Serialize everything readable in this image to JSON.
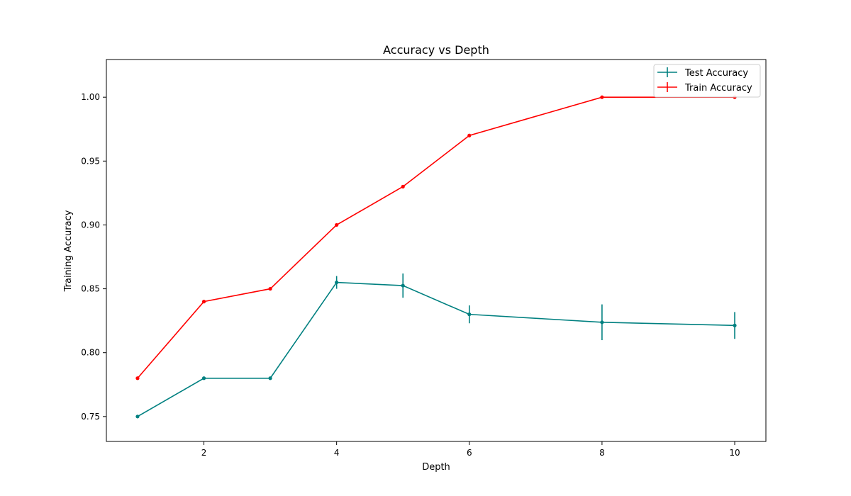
{
  "chart_data": {
    "type": "line",
    "title": "Accuracy vs Depth",
    "xlabel": "Depth",
    "ylabel": "Training Accuracy",
    "xlim": [
      0.53,
      10.47
    ],
    "ylim": [
      0.7305,
      1.0295
    ],
    "x_ticks": [
      2,
      4,
      6,
      8,
      10
    ],
    "y_ticks": [
      0.75,
      0.8,
      0.85,
      0.9,
      0.95,
      1.0
    ],
    "x_tick_labels": [
      "2",
      "4",
      "6",
      "8",
      "10"
    ],
    "y_tick_labels": [
      "0.75",
      "0.80",
      "0.85",
      "0.90",
      "0.95",
      "1.00"
    ],
    "grid": false,
    "legend_position": "top-right",
    "series": [
      {
        "name": "Test Accuracy",
        "color": "#008080",
        "x": [
          1,
          2,
          3,
          4,
          5,
          6,
          8,
          10
        ],
        "y": [
          0.75,
          0.78,
          0.78,
          0.855,
          0.8525,
          0.83,
          0.8238,
          0.8213
        ],
        "yerr": [
          0,
          0,
          0,
          0.005,
          0.0095,
          0.007,
          0.014,
          0.0105
        ]
      },
      {
        "name": "Train Accuracy",
        "color": "#ff0000",
        "x": [
          1,
          2,
          3,
          4,
          5,
          6,
          8,
          10
        ],
        "y": [
          0.78,
          0.84,
          0.85,
          0.9,
          0.93,
          0.97,
          1.0,
          1.0
        ],
        "yerr": [
          0,
          0,
          0,
          0,
          0,
          0,
          0,
          0
        ]
      }
    ]
  }
}
